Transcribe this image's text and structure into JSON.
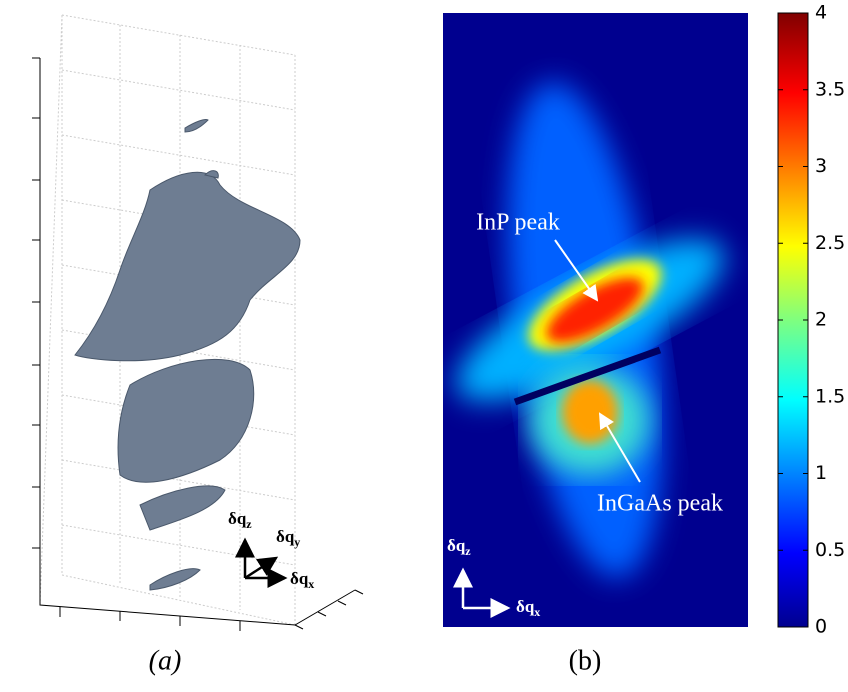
{
  "panels": [
    {
      "label": "(a)",
      "axes": [
        {
          "symbol": "δq",
          "sub": "z"
        },
        {
          "symbol": "δq",
          "sub": "y"
        },
        {
          "symbol": "δq",
          "sub": "x"
        }
      ]
    },
    {
      "label": "(b)",
      "annotations": [
        "InP peak",
        "InGaAs peak"
      ],
      "axes": [
        {
          "symbol": "δq",
          "sub": "z"
        },
        {
          "symbol": "δq",
          "sub": "x"
        }
      ],
      "colorbar": {
        "lim": [
          0,
          4
        ],
        "ticks": [
          0,
          0.5,
          1,
          1.5,
          2,
          2.5,
          3,
          3.5,
          4
        ]
      }
    }
  ]
}
